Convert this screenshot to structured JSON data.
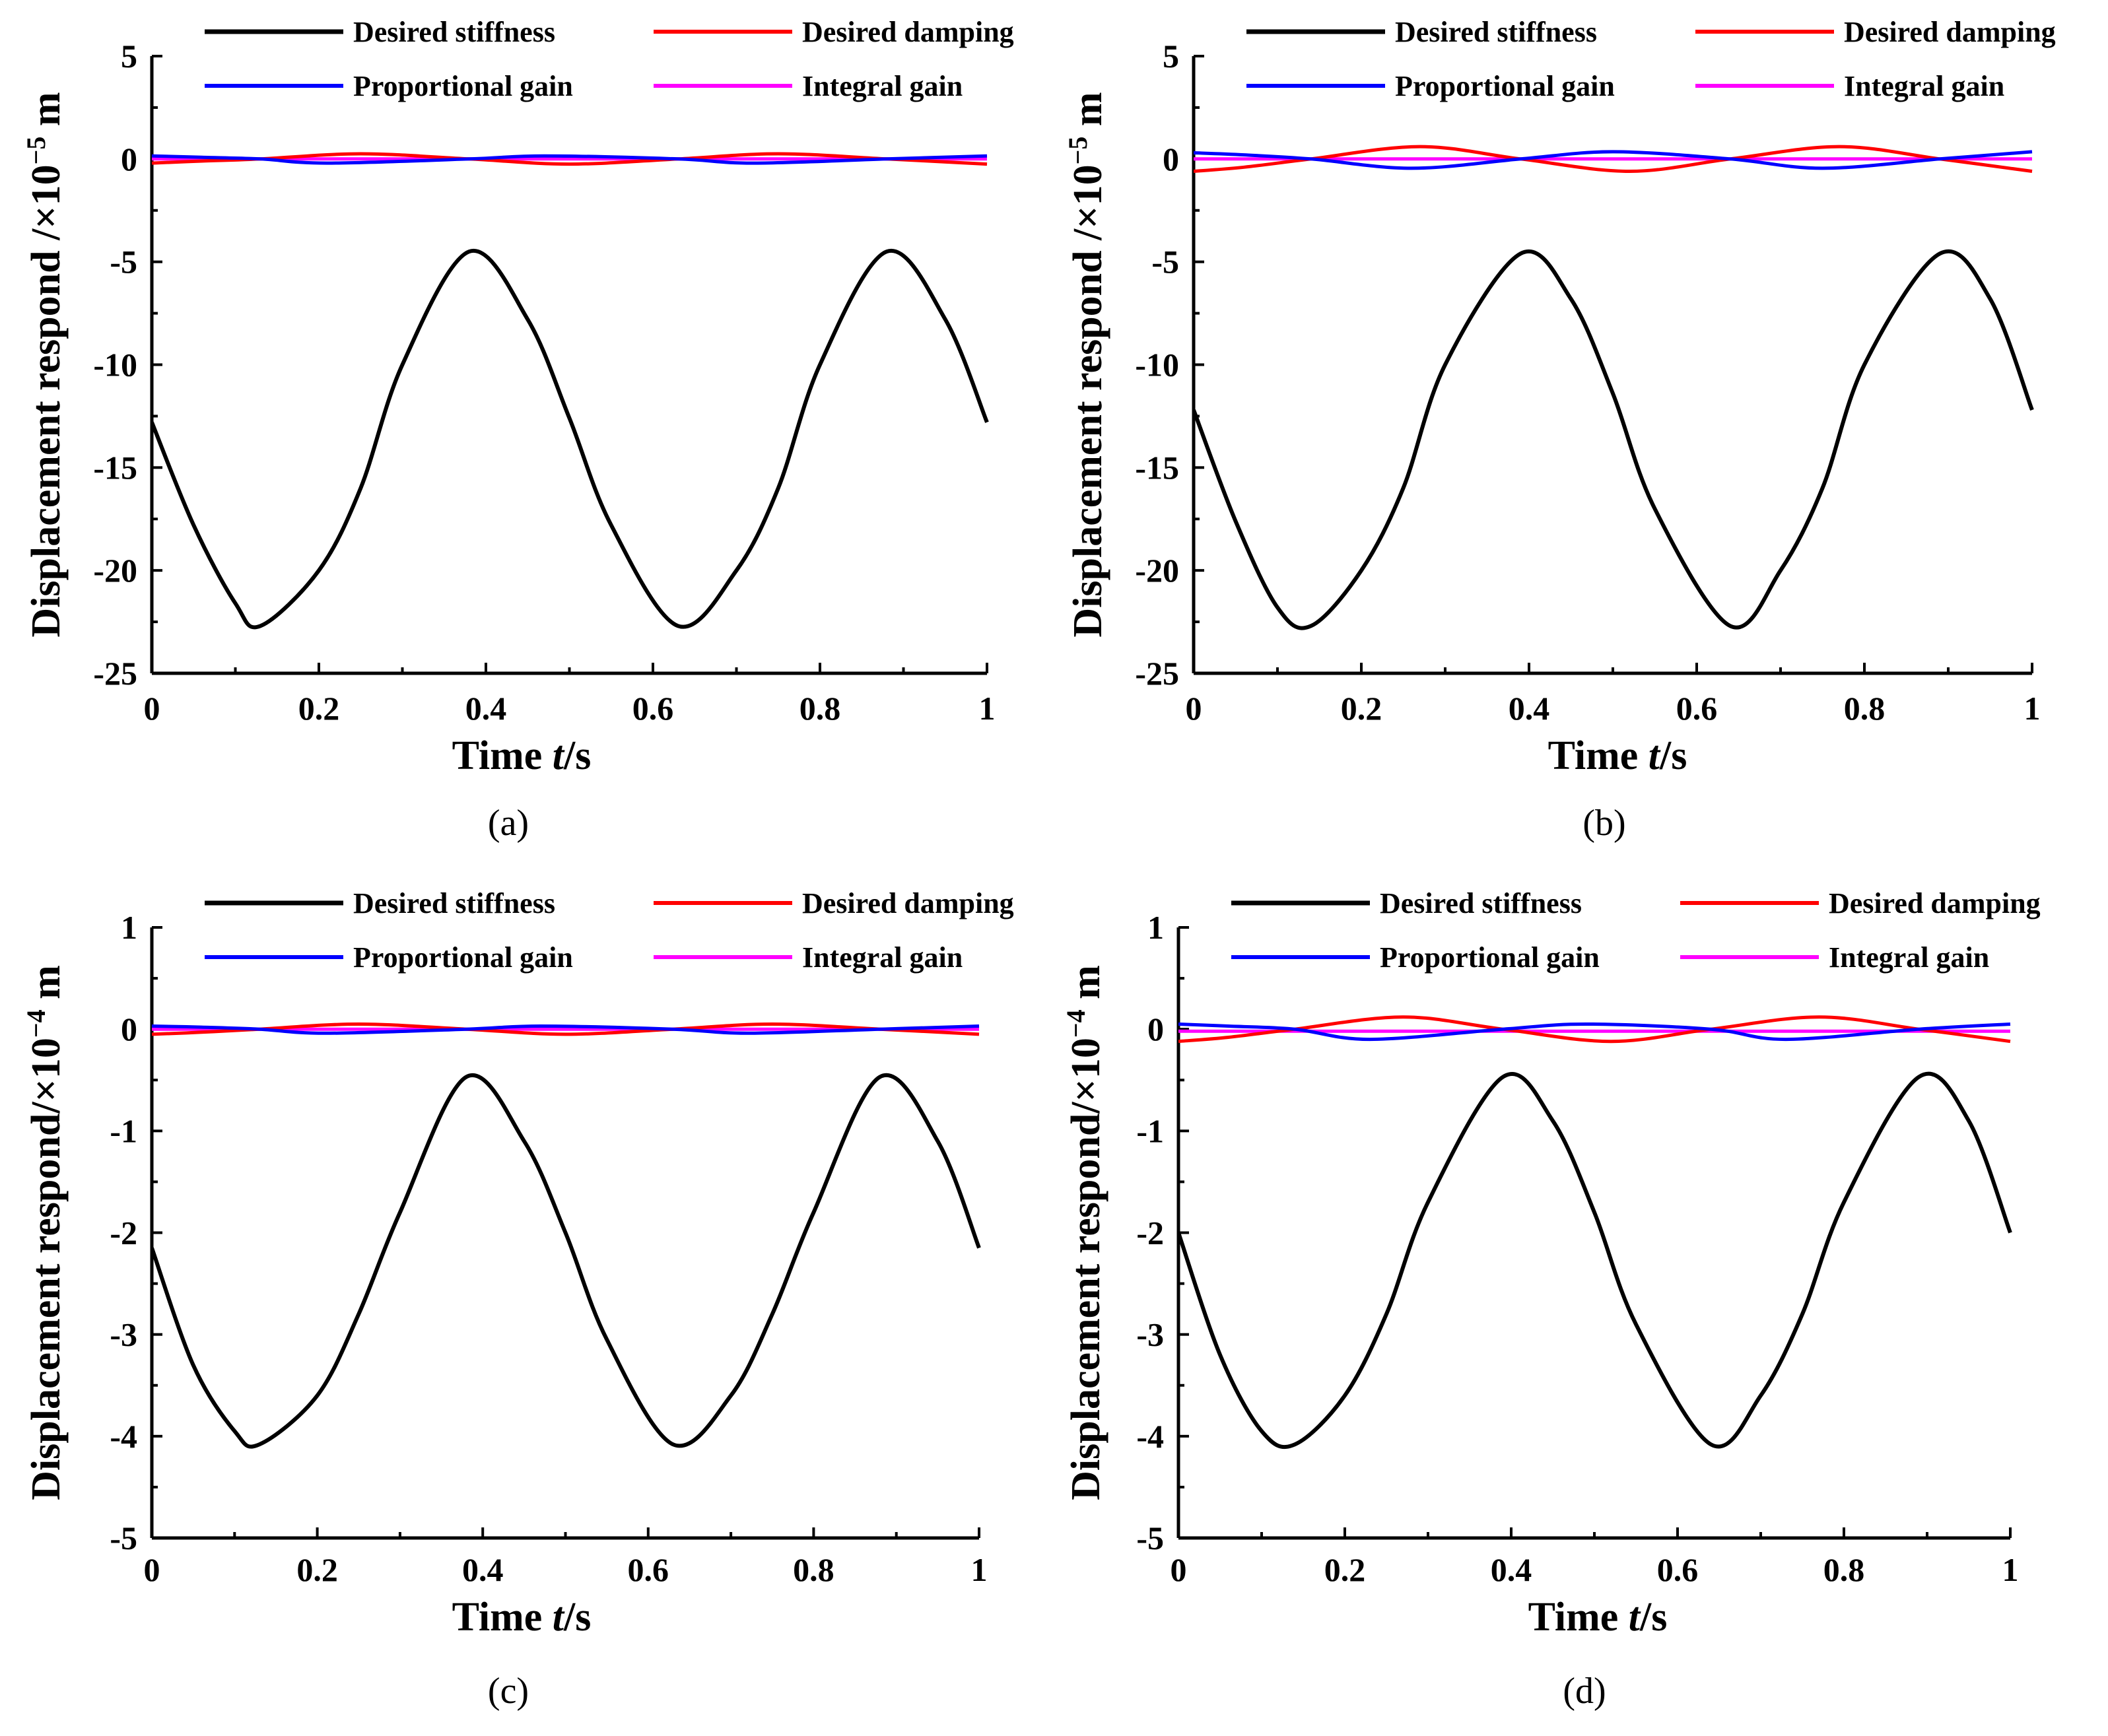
{
  "figure": {
    "colors": {
      "Desired stiffness": "#000000",
      "Desired damping": "#ff0000",
      "Proportional gain": "#0000ff",
      "Integral gain": "#ff00ff"
    },
    "xlabel_prefix": "Time ",
    "xlabel_var": "t",
    "xlabel_unit": "/s"
  },
  "chart_data": [
    {
      "type": "line",
      "panel_label": "(a)",
      "ylabel_prefix": "Displacement respond /×10",
      "ylabel_exp": "−5",
      "ylabel_unit": " m",
      "xlim": [
        0,
        1
      ],
      "ylim": [
        -25,
        5
      ],
      "xticks": [
        0,
        0.2,
        0.4,
        0.6,
        0.8,
        1
      ],
      "xtick_labels": [
        "0",
        "0.2",
        "0.4",
        "0.6",
        "0.8",
        "1"
      ],
      "yticks": [
        5,
        0,
        -5,
        -10,
        -15,
        -20,
        -25
      ],
      "ytick_labels": [
        "5",
        "0",
        "-5",
        "-10",
        "-15",
        "-20",
        "-25"
      ],
      "series": [
        {
          "name": "Desired stiffness",
          "x": [
            0,
            0.05,
            0.1,
            0.13,
            0.2,
            0.25,
            0.3,
            0.38,
            0.45,
            0.5,
            0.55,
            0.63,
            0.7,
            0.75,
            0.8,
            0.88,
            0.95,
            1.0
          ],
          "y": [
            -12.8,
            -17.8,
            -21.6,
            -22.7,
            -20.0,
            -16.0,
            -10.0,
            -4.5,
            -7.8,
            -12.6,
            -17.8,
            -22.7,
            -20.0,
            -16.0,
            -10.0,
            -4.5,
            -7.8,
            -12.8
          ]
        },
        {
          "name": "Desired damping",
          "x": [
            0,
            0.06,
            0.13,
            0.25,
            0.38,
            0.5,
            0.63,
            0.75,
            0.88,
            1.0
          ],
          "y": [
            -0.2,
            -0.1,
            0.0,
            0.25,
            0.0,
            -0.25,
            0.0,
            0.25,
            0.0,
            -0.25
          ]
        },
        {
          "name": "Proportional gain",
          "x": [
            0,
            0.06,
            0.13,
            0.21,
            0.38,
            0.47,
            0.63,
            0.72,
            0.88,
            1.0
          ],
          "y": [
            0.15,
            0.08,
            0.0,
            -0.2,
            0.0,
            0.15,
            0.0,
            -0.2,
            0.0,
            0.15
          ]
        },
        {
          "name": "Integral gain",
          "x": [
            0,
            0.5,
            1.0
          ],
          "y": [
            0.0,
            0.0,
            0.0
          ]
        }
      ],
      "legend": [
        {
          "label": "Desired stiffness"
        },
        {
          "label": "Desired damping"
        },
        {
          "label": "Proportional gain"
        },
        {
          "label": "Integral gain"
        }
      ]
    },
    {
      "type": "line",
      "panel_label": "(b)",
      "ylabel_prefix": "Displacement respond /×10",
      "ylabel_exp": "−5",
      "ylabel_unit": " m",
      "xlim": [
        0,
        1
      ],
      "ylim": [
        -25,
        5
      ],
      "xticks": [
        0,
        0.2,
        0.4,
        0.6,
        0.8,
        1
      ],
      "xtick_labels": [
        "0",
        "0.2",
        "0.4",
        "0.6",
        "0.8",
        "1"
      ],
      "yticks": [
        5,
        0,
        -5,
        -10,
        -15,
        -20,
        -25
      ],
      "ytick_labels": [
        "5",
        "0",
        "-5",
        "-10",
        "-15",
        "-20",
        "-25"
      ],
      "series": [
        {
          "name": "Desired stiffness",
          "x": [
            0,
            0.05,
            0.1,
            0.14,
            0.2,
            0.25,
            0.3,
            0.39,
            0.45,
            0.5,
            0.55,
            0.64,
            0.7,
            0.75,
            0.8,
            0.89,
            0.95,
            1.0
          ],
          "y": [
            -12.2,
            -17.6,
            -21.8,
            -22.7,
            -20.0,
            -16.0,
            -10.0,
            -4.6,
            -6.8,
            -11.4,
            -17.0,
            -22.7,
            -20.0,
            -16.0,
            -10.0,
            -4.6,
            -6.8,
            -12.2
          ]
        },
        {
          "name": "Desired damping",
          "x": [
            0,
            0.06,
            0.14,
            0.27,
            0.39,
            0.52,
            0.64,
            0.77,
            0.89,
            1.0
          ],
          "y": [
            -0.6,
            -0.4,
            0.0,
            0.6,
            0.0,
            -0.6,
            0.0,
            0.6,
            0.0,
            -0.6
          ]
        },
        {
          "name": "Proportional gain",
          "x": [
            0,
            0.06,
            0.14,
            0.26,
            0.39,
            0.5,
            0.64,
            0.75,
            0.89,
            1.0
          ],
          "y": [
            0.3,
            0.2,
            0.0,
            -0.45,
            0.0,
            0.35,
            0.0,
            -0.45,
            0.0,
            0.35
          ]
        },
        {
          "name": "Integral gain",
          "x": [
            0,
            0.5,
            1.0
          ],
          "y": [
            0.0,
            0.0,
            0.0
          ]
        }
      ],
      "legend": [
        {
          "label": "Desired stiffness"
        },
        {
          "label": "Desired damping"
        },
        {
          "label": "Proportional gain"
        },
        {
          "label": "Integral gain"
        }
      ]
    },
    {
      "type": "line",
      "panel_label": "(c)",
      "ylabel_prefix": "Displacement respond/×10",
      "ylabel_exp": "−4",
      "ylabel_unit": " m",
      "xlim": [
        0,
        1
      ],
      "ylim": [
        -5,
        1
      ],
      "xticks": [
        0,
        0.2,
        0.4,
        0.6,
        0.8,
        1
      ],
      "xtick_labels": [
        "0",
        "0.2",
        "0.4",
        "0.6",
        "0.8",
        "1"
      ],
      "yticks": [
        1,
        0,
        -1,
        -2,
        -3,
        -4,
        -5
      ],
      "ytick_labels": [
        "1",
        "0",
        "-1",
        "-2",
        "-3",
        "-4",
        "-5"
      ],
      "series": [
        {
          "name": "Desired stiffness",
          "x": [
            0,
            0.05,
            0.1,
            0.13,
            0.2,
            0.25,
            0.3,
            0.38,
            0.45,
            0.5,
            0.55,
            0.63,
            0.7,
            0.75,
            0.8,
            0.88,
            0.95,
            1.0
          ],
          "y": [
            -2.15,
            -3.3,
            -3.95,
            -4.08,
            -3.6,
            -2.8,
            -1.8,
            -0.47,
            -1.1,
            -2.0,
            -3.05,
            -4.08,
            -3.6,
            -2.8,
            -1.8,
            -0.47,
            -1.1,
            -2.15
          ]
        },
        {
          "name": "Desired damping",
          "x": [
            0,
            0.06,
            0.13,
            0.25,
            0.38,
            0.5,
            0.63,
            0.75,
            0.88,
            1.0
          ],
          "y": [
            -0.05,
            -0.03,
            0.0,
            0.05,
            0.0,
            -0.05,
            0.0,
            0.05,
            0.0,
            -0.05
          ]
        },
        {
          "name": "Proportional gain",
          "x": [
            0,
            0.06,
            0.13,
            0.21,
            0.38,
            0.47,
            0.63,
            0.72,
            0.88,
            1.0
          ],
          "y": [
            0.03,
            0.02,
            0.0,
            -0.04,
            0.0,
            0.03,
            0.0,
            -0.04,
            0.0,
            0.03
          ]
        },
        {
          "name": "Integral gain",
          "x": [
            0,
            0.5,
            1.0
          ],
          "y": [
            0.0,
            0.0,
            0.0
          ]
        }
      ],
      "legend": [
        {
          "label": "Desired stiffness"
        },
        {
          "label": "Desired damping"
        },
        {
          "label": "Proportional gain"
        },
        {
          "label": "Integral gain"
        }
      ]
    },
    {
      "type": "line",
      "panel_label": "(d)",
      "ylabel_prefix": "Displacement respond/×10",
      "ylabel_exp": "−4",
      "ylabel_unit": " m",
      "xlim": [
        0,
        1
      ],
      "ylim": [
        -5,
        1
      ],
      "xticks": [
        0,
        0.2,
        0.4,
        0.6,
        0.8,
        1
      ],
      "xtick_labels": [
        "0",
        "0.2",
        "0.4",
        "0.6",
        "0.8",
        "1"
      ],
      "yticks": [
        1,
        0,
        -1,
        -2,
        -3,
        -4,
        -5
      ],
      "ytick_labels": [
        "1",
        "0",
        "-1",
        "-2",
        "-3",
        "-4",
        "-5"
      ],
      "series": [
        {
          "name": "Desired stiffness",
          "x": [
            0,
            0.05,
            0.1,
            0.14,
            0.2,
            0.25,
            0.3,
            0.39,
            0.45,
            0.5,
            0.55,
            0.64,
            0.7,
            0.75,
            0.8,
            0.89,
            0.95,
            1.0
          ],
          "y": [
            -2.0,
            -3.2,
            -3.95,
            -4.08,
            -3.6,
            -2.8,
            -1.7,
            -0.47,
            -0.9,
            -1.8,
            -2.9,
            -4.08,
            -3.6,
            -2.8,
            -1.7,
            -0.47,
            -0.9,
            -2.0
          ]
        },
        {
          "name": "Desired damping",
          "x": [
            0,
            0.06,
            0.14,
            0.27,
            0.39,
            0.52,
            0.64,
            0.77,
            0.89,
            1.0
          ],
          "y": [
            -0.12,
            -0.08,
            0.0,
            0.12,
            0.0,
            -0.12,
            0.0,
            0.12,
            0.0,
            -0.12
          ]
        },
        {
          "name": "Proportional gain",
          "x": [
            0,
            0.06,
            0.14,
            0.23,
            0.39,
            0.49,
            0.64,
            0.73,
            0.89,
            1.0
          ],
          "y": [
            0.05,
            0.03,
            0.0,
            -0.1,
            0.0,
            0.05,
            0.0,
            -0.1,
            0.0,
            0.05
          ]
        },
        {
          "name": "Integral gain",
          "x": [
            0,
            0.5,
            1.0
          ],
          "y": [
            -0.02,
            -0.02,
            -0.02
          ]
        }
      ],
      "legend": [
        {
          "label": "Desired stiffness"
        },
        {
          "label": "Desired damping"
        },
        {
          "label": "Proportional gain"
        },
        {
          "label": "Integral gain"
        }
      ]
    }
  ]
}
